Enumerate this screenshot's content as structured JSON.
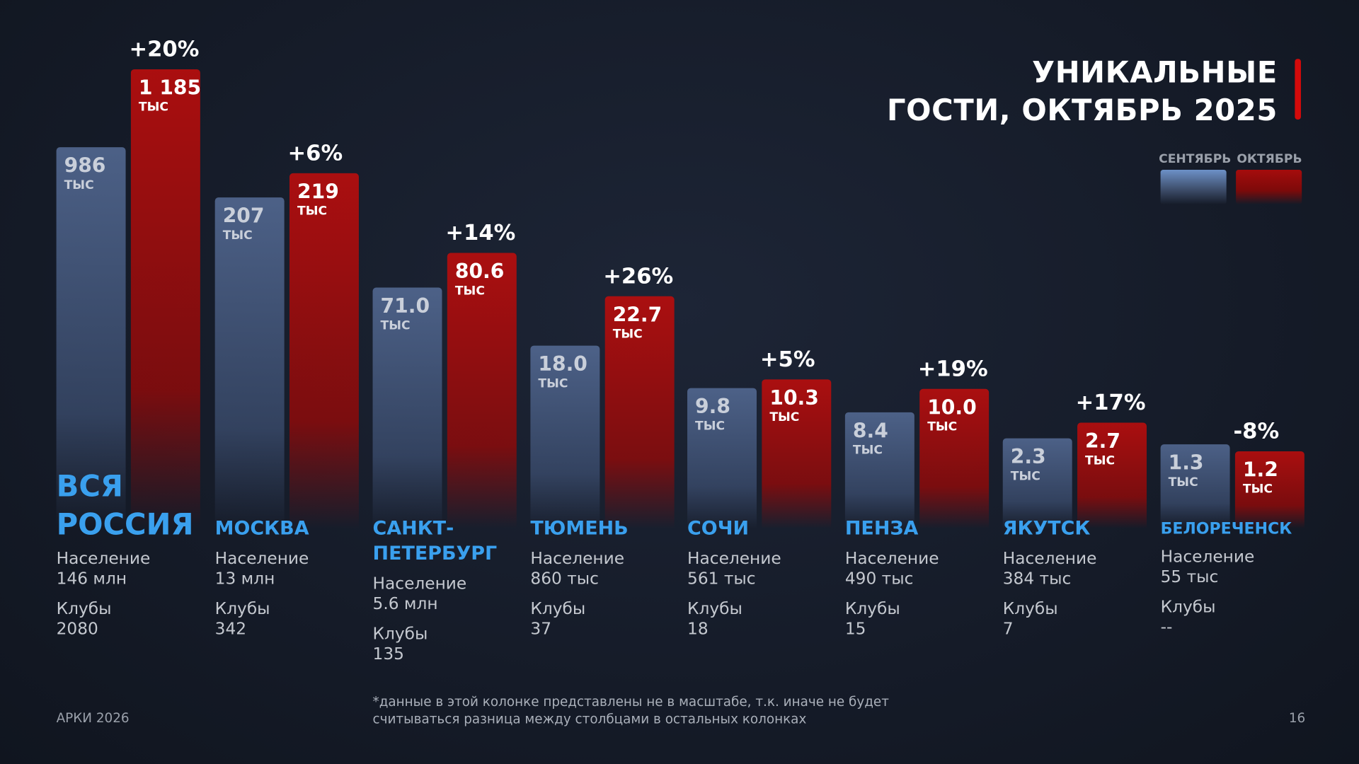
{
  "title_lines": [
    "УНИКАЛЬНЫЕ",
    "ГОСТИ, ОКТЯБРЬ 2025"
  ],
  "legend": [
    {
      "label": "СЕНТЯБРЬ",
      "color": "#5b7bb0"
    },
    {
      "label": "ОКТЯБРЬ",
      "color": "#b00f0f"
    }
  ],
  "population_label": "Население",
  "clubs_label": "Клубы",
  "footer": {
    "brand": "АРКИ 2026",
    "page": "16",
    "note_lines": [
      "*данные в этой колонке представлены не в масштабе, т.к. иначе не будет",
      "считываться разница между столбцами в остальных колонках"
    ]
  },
  "chart_data": {
    "type": "bar",
    "title": "УНИКАЛЬНЫЕ ГОСТИ, ОКТЯБРЬ 2025",
    "unit": "тыс",
    "legend_placement": "top-right",
    "categories": [
      "ВСЯ РОССИЯ",
      "МОСКВА",
      "САНКТ-ПЕТЕРБУРГ",
      "ТЮМЕНЬ",
      "СОЧИ",
      "ПЕНЗА",
      "ЯКУТСК",
      "БЕЛОРЕЧЕНСК"
    ],
    "series": [
      {
        "name": "СЕНТЯБРЬ",
        "values": [
          986,
          207,
          71.0,
          18.0,
          9.8,
          8.4,
          2.3,
          1.3
        ],
        "labels": [
          "986",
          "207",
          "71.0",
          "18.0",
          "9.8",
          "8.4",
          "2.3",
          "1.3"
        ]
      },
      {
        "name": "ОКТЯБРЬ",
        "values": [
          1185,
          219,
          80.6,
          22.7,
          10.3,
          10.0,
          2.7,
          1.2
        ],
        "labels": [
          "1 185",
          "219",
          "80.6",
          "22.7",
          "10.3",
          "10.0",
          "2.7",
          "1.2"
        ]
      }
    ],
    "change": [
      "+20%",
      "+6%",
      "+14%",
      "+26%",
      "+5%",
      "+19%",
      "+17%",
      "-8%"
    ],
    "population": [
      "146 млн",
      "13 млн",
      "5.6 млн",
      "860 тыс",
      "561 тыс",
      "490 тыс",
      "384 тыс",
      "55 тыс"
    ],
    "clubs": [
      "2080",
      "342",
      "135",
      "37",
      "18",
      "15",
      "7",
      "--"
    ]
  }
}
